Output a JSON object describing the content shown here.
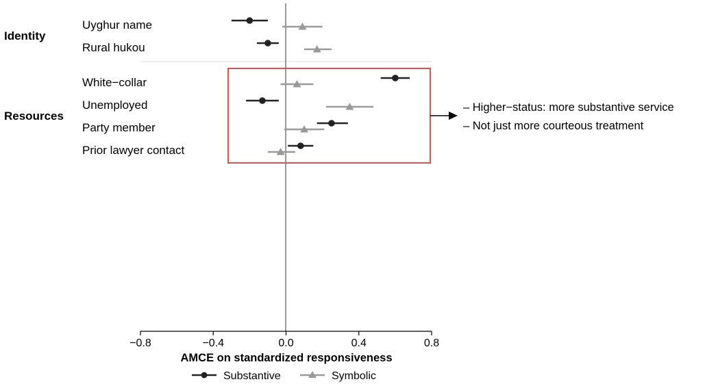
{
  "chart_data": {
    "type": "scatter",
    "subtype": "coefficient-plot",
    "xlabel": "AMCE on standardized responsiveness",
    "xlim": [
      -0.8,
      0.8
    ],
    "xticks": [
      -0.8,
      -0.4,
      0.0,
      0.4,
      0.8
    ],
    "xtick_labels": [
      "−0.8",
      "−0.4",
      "0.0",
      "0.4",
      "0.8"
    ],
    "reference_line": 0,
    "groups": [
      {
        "label": "Identity",
        "rows": [
          "Uyghur name",
          "Rural hukou"
        ]
      },
      {
        "label": "Resources",
        "rows": [
          "White−collar",
          "Unemployed",
          "Party member",
          "Prior lawyer contact"
        ]
      }
    ],
    "series": [
      {
        "name": "Substantive",
        "color": "#222222",
        "marker": "circle",
        "points": [
          {
            "row": "Uyghur name",
            "estimate": -0.2,
            "low": -0.3,
            "high": -0.1
          },
          {
            "row": "Rural hukou",
            "estimate": -0.1,
            "low": -0.16,
            "high": -0.04
          },
          {
            "row": "White−collar",
            "estimate": 0.6,
            "low": 0.52,
            "high": 0.68
          },
          {
            "row": "Unemployed",
            "estimate": -0.13,
            "low": -0.22,
            "high": -0.04
          },
          {
            "row": "Party member",
            "estimate": 0.25,
            "low": 0.17,
            "high": 0.34
          },
          {
            "row": "Prior lawyer contact",
            "estimate": 0.08,
            "low": 0.01,
            "high": 0.15
          }
        ]
      },
      {
        "name": "Symbolic",
        "color": "#999999",
        "marker": "triangle",
        "points": [
          {
            "row": "Uyghur name",
            "estimate": 0.09,
            "low": -0.02,
            "high": 0.2
          },
          {
            "row": "Rural hukou",
            "estimate": 0.17,
            "low": 0.1,
            "high": 0.25
          },
          {
            "row": "White−collar",
            "estimate": 0.06,
            "low": -0.03,
            "high": 0.15
          },
          {
            "row": "Unemployed",
            "estimate": 0.35,
            "low": 0.22,
            "high": 0.48
          },
          {
            "row": "Party member",
            "estimate": 0.1,
            "low": -0.01,
            "high": 0.21
          },
          {
            "row": "Prior lawyer contact",
            "estimate": -0.03,
            "low": -0.1,
            "high": 0.05
          }
        ]
      }
    ],
    "legend": {
      "position": "bottom",
      "entries": [
        "Substantive",
        "Symbolic"
      ]
    },
    "annotation": {
      "highlight": "Resources",
      "box_color": "#d9534f",
      "lines": [
        "– Higher−status: more substantive service",
        "– Not just more courteous treatment"
      ]
    },
    "grid": false
  }
}
